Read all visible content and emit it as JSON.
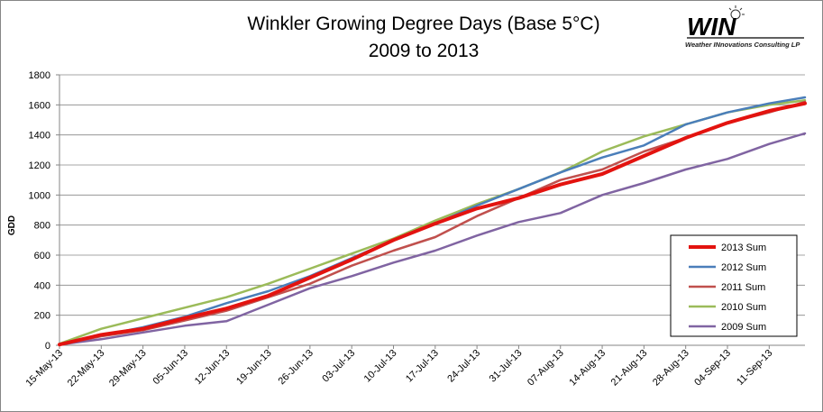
{
  "chart_data": {
    "type": "line",
    "title_line1": "Winkler Growing  Degree Days (Base 5°C)",
    "title_line2": "2009 to 2013",
    "xlabel": "",
    "ylabel": "GDD",
    "ylim": [
      0,
      1800
    ],
    "yticks": [
      0,
      200,
      400,
      600,
      800,
      1000,
      1200,
      1400,
      1600,
      1800
    ],
    "xticks": [
      "15-May-13",
      "22-May-13",
      "29-May-13",
      "05-Jun-13",
      "12-Jun-13",
      "19-Jun-13",
      "26-Jun-13",
      "03-Jul-13",
      "10-Jul-13",
      "17-Jul-13",
      "24-Jul-13",
      "31-Jul-13",
      "07-Aug-13",
      "14-Aug-13",
      "21-Aug-13",
      "28-Aug-13",
      "04-Sep-13",
      "11-Sep-13"
    ],
    "x_start": "15-May-13",
    "x_end": "17-Sep-13",
    "grid": "horizontal",
    "legend_position": "bottom-right",
    "series": [
      {
        "name": "2013 Sum",
        "color": "#e3130f",
        "points": [
          [
            "15-May-13",
            5
          ],
          [
            "22-May-13",
            70
          ],
          [
            "29-May-13",
            110
          ],
          [
            "05-Jun-13",
            180
          ],
          [
            "12-Jun-13",
            245
          ],
          [
            "19-Jun-13",
            330
          ],
          [
            "26-Jun-13",
            450
          ],
          [
            "03-Jul-13",
            570
          ],
          [
            "10-Jul-13",
            700
          ],
          [
            "17-Jul-13",
            810
          ],
          [
            "24-Jul-13",
            910
          ],
          [
            "31-Jul-13",
            980
          ],
          [
            "07-Aug-13",
            1070
          ],
          [
            "14-Aug-13",
            1140
          ],
          [
            "21-Aug-13",
            1260
          ],
          [
            "28-Aug-13",
            1380
          ],
          [
            "04-Sep-13",
            1480
          ],
          [
            "11-Sep-13",
            1560
          ],
          [
            "17-Sep-13",
            1610
          ]
        ]
      },
      {
        "name": "2012 Sum",
        "color": "#4a7eba",
        "points": [
          [
            "15-May-13",
            5
          ],
          [
            "22-May-13",
            65
          ],
          [
            "29-May-13",
            120
          ],
          [
            "05-Jun-13",
            190
          ],
          [
            "12-Jun-13",
            280
          ],
          [
            "19-Jun-13",
            360
          ],
          [
            "26-Jun-13",
            460
          ],
          [
            "03-Jul-13",
            580
          ],
          [
            "10-Jul-13",
            700
          ],
          [
            "17-Jul-13",
            810
          ],
          [
            "24-Jul-13",
            930
          ],
          [
            "31-Jul-13",
            1040
          ],
          [
            "07-Aug-13",
            1150
          ],
          [
            "14-Aug-13",
            1250
          ],
          [
            "21-Aug-13",
            1330
          ],
          [
            "28-Aug-13",
            1470
          ],
          [
            "04-Sep-13",
            1550
          ],
          [
            "11-Sep-13",
            1610
          ],
          [
            "17-Sep-13",
            1650
          ]
        ]
      },
      {
        "name": "2011 Sum",
        "color": "#c0504d",
        "points": [
          [
            "15-May-13",
            5
          ],
          [
            "22-May-13",
            60
          ],
          [
            "29-May-13",
            100
          ],
          [
            "05-Jun-13",
            165
          ],
          [
            "12-Jun-13",
            230
          ],
          [
            "19-Jun-13",
            320
          ],
          [
            "26-Jun-13",
            410
          ],
          [
            "03-Jul-13",
            530
          ],
          [
            "10-Jul-13",
            630
          ],
          [
            "17-Jul-13",
            720
          ],
          [
            "24-Jul-13",
            860
          ],
          [
            "31-Jul-13",
            980
          ],
          [
            "07-Aug-13",
            1100
          ],
          [
            "14-Aug-13",
            1170
          ],
          [
            "21-Aug-13",
            1290
          ],
          [
            "28-Aug-13",
            1380
          ],
          [
            "04-Sep-13",
            1480
          ],
          [
            "11-Sep-13",
            1550
          ],
          [
            "17-Sep-13",
            1620
          ]
        ]
      },
      {
        "name": "2010 Sum",
        "color": "#9bbb59",
        "points": [
          [
            "15-May-13",
            10
          ],
          [
            "22-May-13",
            110
          ],
          [
            "29-May-13",
            180
          ],
          [
            "05-Jun-13",
            250
          ],
          [
            "12-Jun-13",
            320
          ],
          [
            "19-Jun-13",
            410
          ],
          [
            "26-Jun-13",
            510
          ],
          [
            "03-Jul-13",
            610
          ],
          [
            "10-Jul-13",
            710
          ],
          [
            "17-Jul-13",
            830
          ],
          [
            "24-Jul-13",
            940
          ],
          [
            "31-Jul-13",
            1040
          ],
          [
            "07-Aug-13",
            1150
          ],
          [
            "14-Aug-13",
            1290
          ],
          [
            "21-Aug-13",
            1390
          ],
          [
            "28-Aug-13",
            1470
          ],
          [
            "04-Sep-13",
            1550
          ],
          [
            "11-Sep-13",
            1600
          ],
          [
            "17-Sep-13",
            1630
          ]
        ]
      },
      {
        "name": "2009 Sum",
        "color": "#8064a2",
        "points": [
          [
            "15-May-13",
            5
          ],
          [
            "22-May-13",
            40
          ],
          [
            "29-May-13",
            85
          ],
          [
            "05-Jun-13",
            130
          ],
          [
            "12-Jun-13",
            160
          ],
          [
            "19-Jun-13",
            270
          ],
          [
            "26-Jun-13",
            380
          ],
          [
            "03-Jul-13",
            460
          ],
          [
            "10-Jul-13",
            550
          ],
          [
            "17-Jul-13",
            630
          ],
          [
            "24-Jul-13",
            730
          ],
          [
            "31-Jul-13",
            820
          ],
          [
            "07-Aug-13",
            880
          ],
          [
            "14-Aug-13",
            1000
          ],
          [
            "21-Aug-13",
            1080
          ],
          [
            "28-Aug-13",
            1170
          ],
          [
            "04-Sep-13",
            1240
          ],
          [
            "11-Sep-13",
            1340
          ],
          [
            "17-Sep-13",
            1410
          ]
        ]
      }
    ]
  },
  "logo": {
    "brand": "WIN",
    "tagline": "Weather INnovations Consulting LP",
    "color": "#000000"
  }
}
